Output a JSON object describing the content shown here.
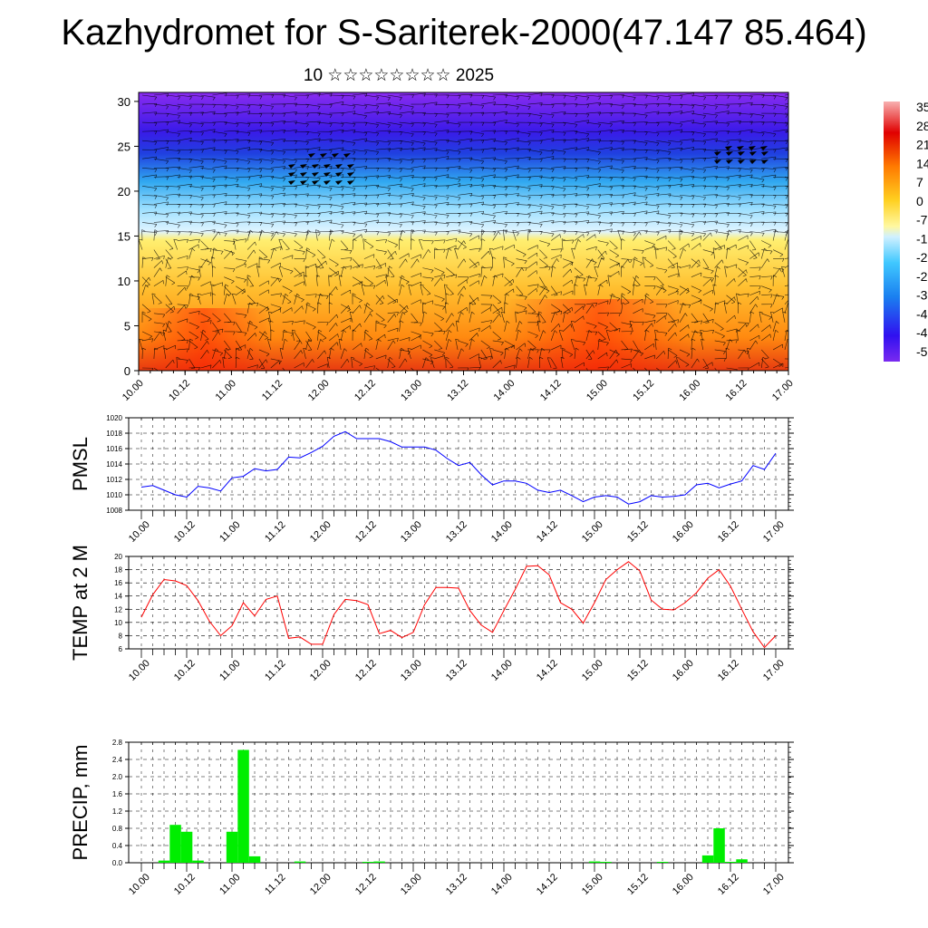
{
  "header": {
    "title": "Kazhydromet for S-Sariterek-2000(47.147 85.464)",
    "subtitle": "10 ☆☆☆☆☆☆☆☆ 2025"
  },
  "chart_data": [
    {
      "type": "heatmap",
      "name": "cross-section",
      "y_ticks": [
        "0",
        "5",
        "10",
        "15",
        "20",
        "25",
        "30"
      ],
      "ylim": [
        0,
        31
      ],
      "x_ticks": [
        "10.00",
        "10.12",
        "11.00",
        "11.12",
        "12.00",
        "12.12",
        "13.00",
        "13.12",
        "14.00",
        "14.12",
        "15.00",
        "15.12",
        "16.00",
        "16.12",
        "17.00"
      ],
      "colorbar_labels": [
        "35",
        "28",
        "21",
        "14",
        "7",
        "0",
        "-7",
        "-1",
        "-2",
        "-2",
        "-3",
        "-4",
        "-4",
        "-5"
      ],
      "colors": {
        "warm": "#ff3a00",
        "mid": "#ffe840",
        "cool": "#3ab4ff",
        "cold": "#3a1cf0"
      }
    },
    {
      "type": "line",
      "ylabel": "PMSL",
      "ylim": [
        1008,
        1020
      ],
      "y_ticks": [
        "1008",
        "1010",
        "1012",
        "1014",
        "1016",
        "1018",
        "1020"
      ],
      "x_ticks": [
        "10.00",
        "10.12",
        "11.00",
        "11.12",
        "12.00",
        "12.12",
        "13.00",
        "13.12",
        "14.00",
        "14.12",
        "15.00",
        "15.12",
        "16.00",
        "16.12",
        "17.00"
      ],
      "color": "#0000ff",
      "values": [
        1011,
        1011.2,
        1010.6,
        1010,
        1009.7,
        1011.1,
        1010.9,
        1010.5,
        1012.2,
        1012.4,
        1013.4,
        1013.1,
        1013.3,
        1014.9,
        1014.8,
        1015.5,
        1016.3,
        1017.6,
        1018.2,
        1017.3,
        1017.3,
        1017.3,
        1016.9,
        1016.2,
        1016.2,
        1016.2,
        1015.8,
        1014.7,
        1013.8,
        1014.2,
        1012.6,
        1011.3,
        1011.8,
        1011.8,
        1011.5,
        1010.6,
        1010.3,
        1010.6,
        1009.9,
        1009.1,
        1009.7,
        1009.9,
        1009.7,
        1008.8,
        1009.1,
        1009.9,
        1009.7,
        1009.8,
        1010,
        1011.3,
        1011.5,
        1010.9,
        1011.4,
        1011.8,
        1013.8,
        1013.3,
        1015.4
      ]
    },
    {
      "type": "line",
      "ylabel": "TEMP at 2 M",
      "ylim": [
        6,
        20
      ],
      "y_ticks": [
        "6",
        "8",
        "10",
        "12",
        "14",
        "16",
        "18",
        "20"
      ],
      "x_ticks": [
        "10.00",
        "10.12",
        "11.00",
        "11.12",
        "12.00",
        "12.12",
        "13.00",
        "13.12",
        "14.00",
        "14.12",
        "15.00",
        "15.12",
        "16.00",
        "16.12",
        "17.00"
      ],
      "color": "#ff0000",
      "values": [
        10.8,
        14.2,
        16.5,
        16.3,
        15.6,
        13.3,
        10.2,
        8,
        9.5,
        13,
        11,
        13.5,
        14,
        7.6,
        7.8,
        6.7,
        6.7,
        11.2,
        13.5,
        13.3,
        12.7,
        8.3,
        8.8,
        7.7,
        8.5,
        12.7,
        15.3,
        15.3,
        15.2,
        11.8,
        9.6,
        8.5,
        11.8,
        15,
        18.5,
        18.6,
        17.2,
        13,
        12,
        9.9,
        13,
        16.5,
        18,
        19.2,
        17.8,
        13.4,
        12,
        11.9,
        13,
        14.5,
        16.7,
        18,
        15.5,
        12,
        8.6,
        6.2,
        8
      ]
    },
    {
      "type": "bar",
      "ylabel": "PRECIP, mm",
      "ylim": [
        0,
        2.8
      ],
      "y_ticks": [
        "0.0",
        "0.4",
        "0.8",
        "1.2",
        "1.6",
        "2.0",
        "2.4",
        "2.8"
      ],
      "x_ticks": [
        "10.00",
        "10.12",
        "11.00",
        "11.12",
        "12.00",
        "12.12",
        "13.00",
        "13.12",
        "14.00",
        "14.12",
        "15.00",
        "15.12",
        "16.00",
        "16.12",
        "17.00"
      ],
      "color": "#00ee00",
      "values": [
        0,
        0,
        0.05,
        0.88,
        0.72,
        0.05,
        0,
        0,
        0.72,
        2.62,
        0.15,
        0,
        0,
        0,
        0.03,
        0,
        0,
        0,
        0,
        0,
        0.02,
        0.03,
        0,
        0,
        0,
        0,
        0,
        0,
        0,
        0,
        0,
        0,
        0,
        0,
        0,
        0,
        0,
        0,
        0,
        0,
        0.03,
        0.02,
        0,
        0,
        0,
        0,
        0.02,
        0,
        0,
        0,
        0.17,
        0.8,
        0.02,
        0.08,
        0,
        0,
        0
      ]
    }
  ]
}
